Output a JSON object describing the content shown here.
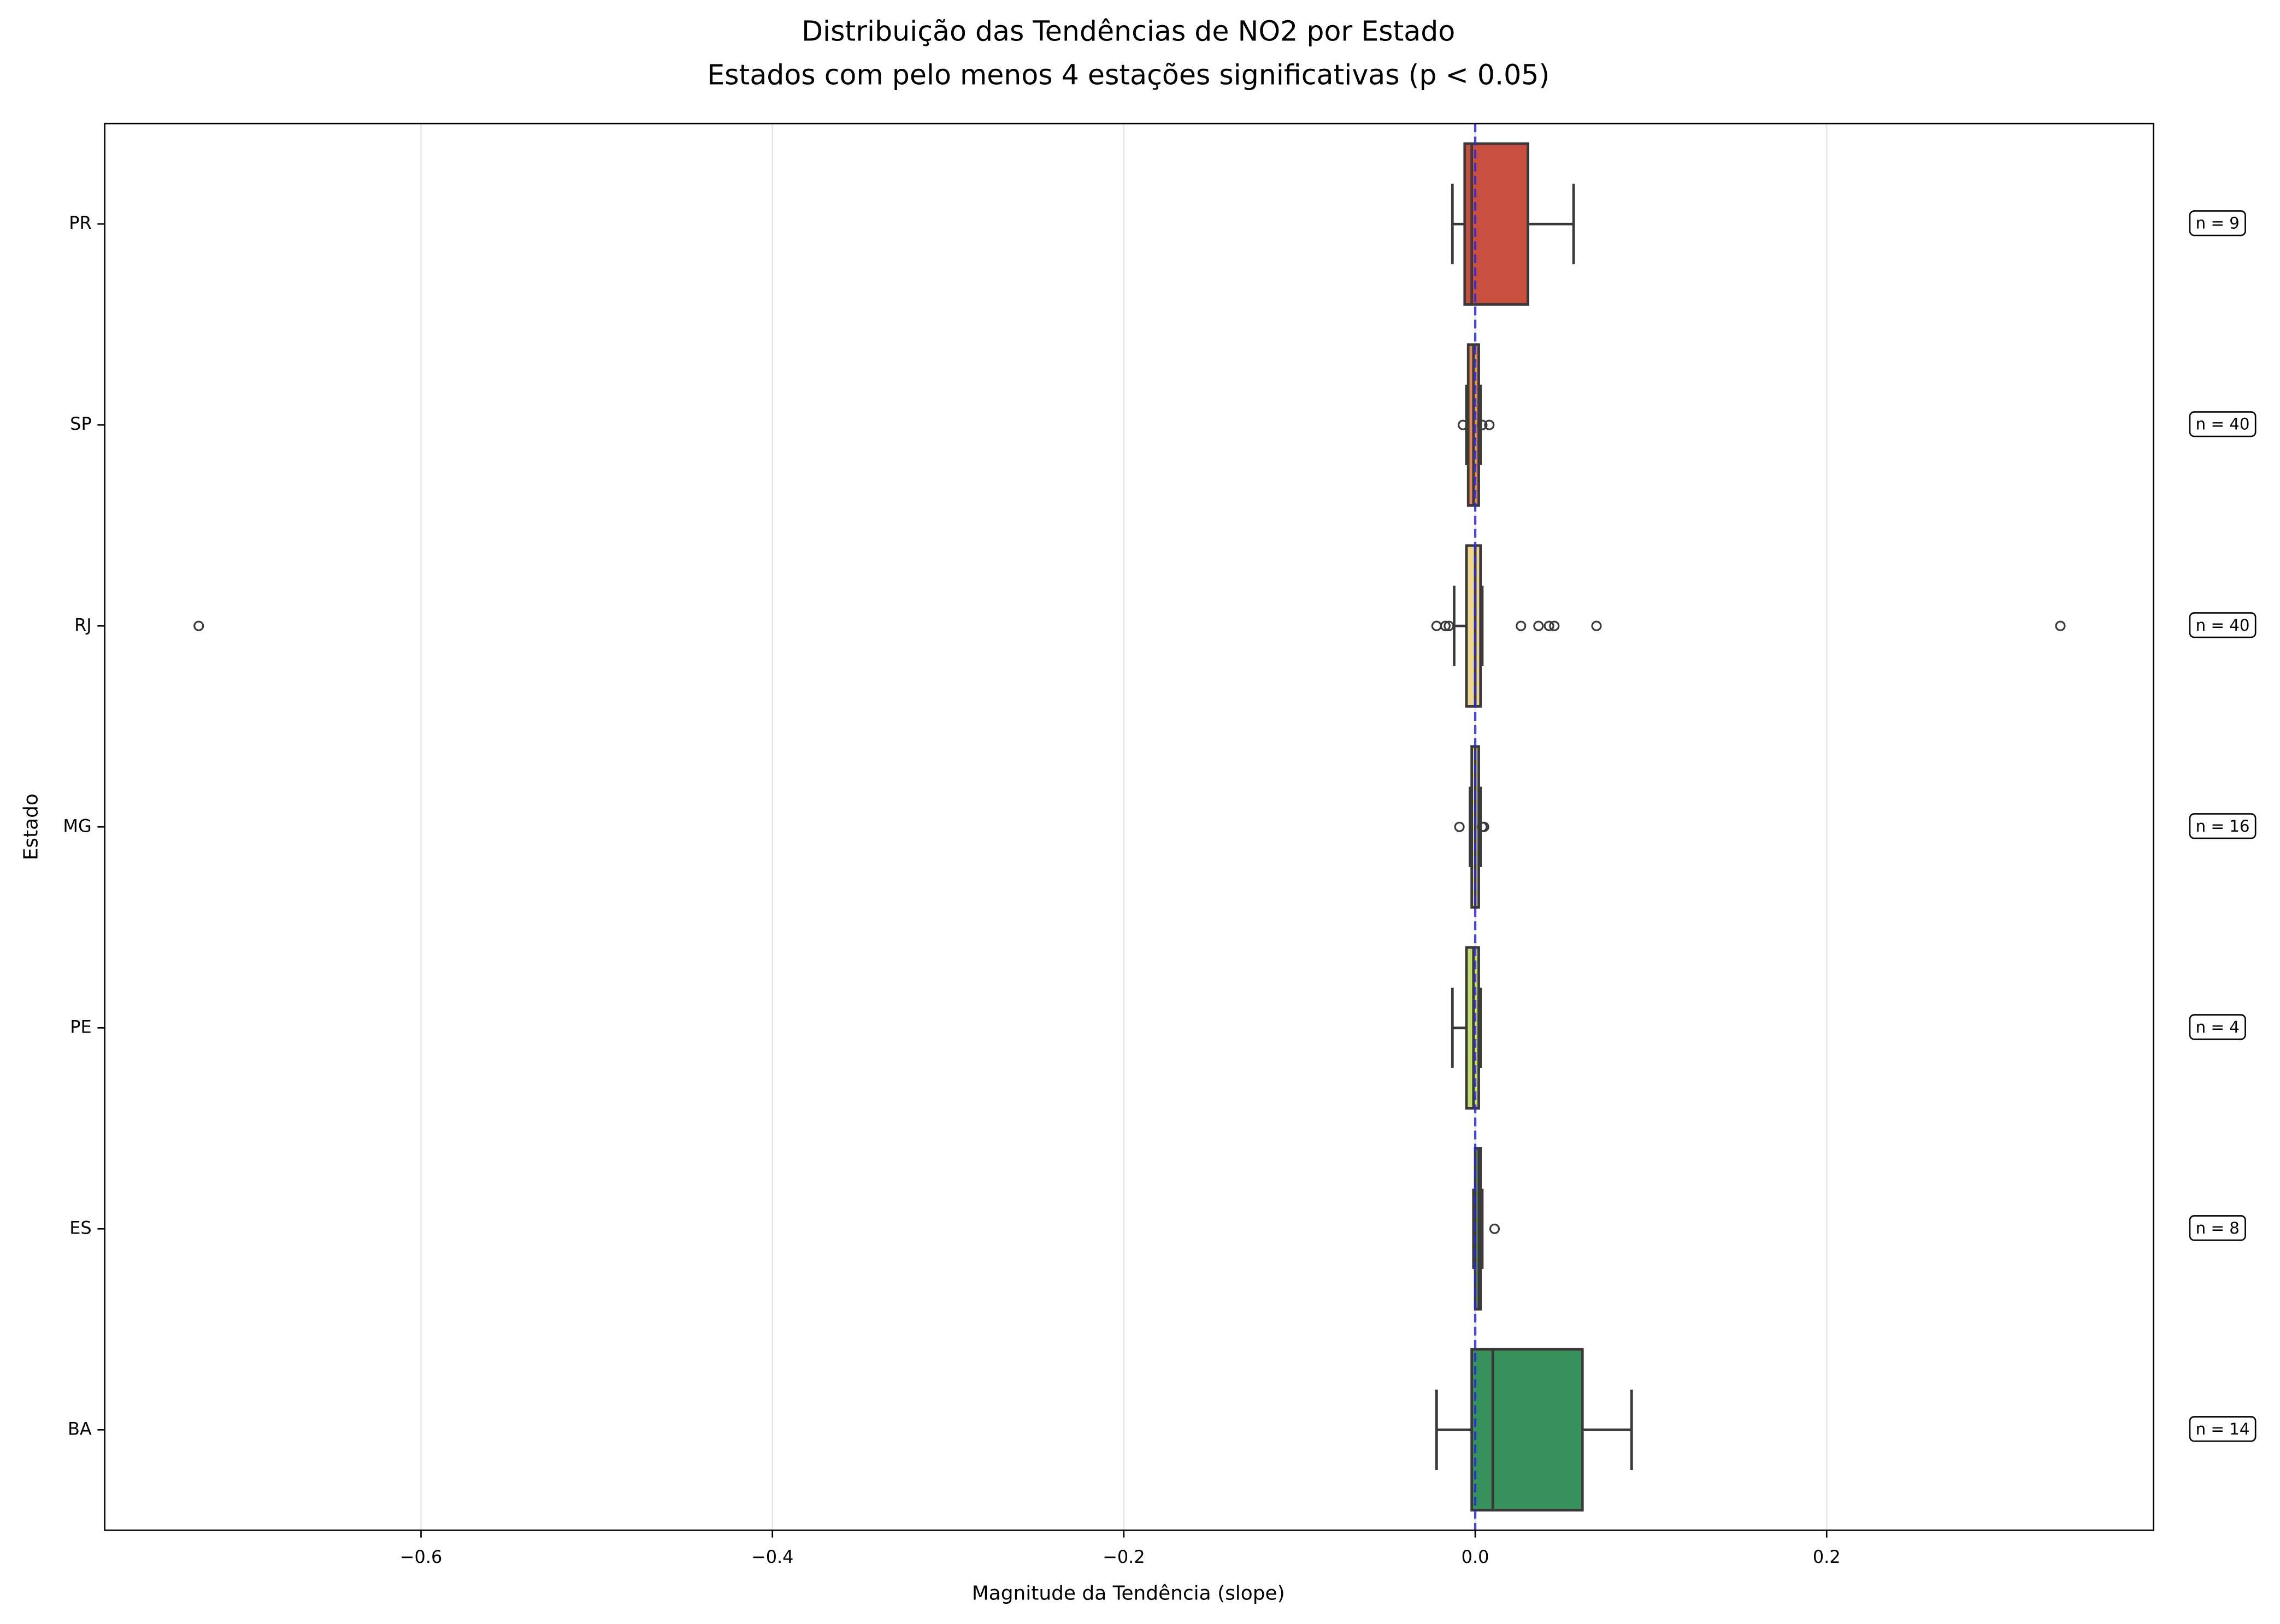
{
  "chart_data": {
    "type": "box",
    "title": "Distribuição das Tendências de NO2 por Estado",
    "subtitle": "Estados com pelo menos 4 estações significativas (p < 0.05)",
    "xlabel": "Magnitude da Tendência (slope)",
    "ylabel": "Estado",
    "orientation": "horizontal",
    "categories": [
      "PR",
      "SP",
      "RJ",
      "MG",
      "PE",
      "ES",
      "BA"
    ],
    "colors": [
      "#c9503f",
      "#e48a5a",
      "#efd68e",
      "#f6f0b4",
      "#c6df73",
      "#7cc06e",
      "#37915a"
    ],
    "boxes": [
      {
        "whislo": -0.013,
        "q1": -0.006,
        "med": -0.002,
        "q3": 0.03,
        "whishi": 0.056,
        "fliers": []
      },
      {
        "whislo": -0.005,
        "q1": -0.004,
        "med": -0.001,
        "q3": 0.002,
        "whishi": 0.003,
        "fliers": [
          -0.007,
          0.004,
          0.008
        ]
      },
      {
        "whislo": -0.012,
        "q1": -0.005,
        "med": 0.0,
        "q3": 0.003,
        "whishi": 0.004,
        "fliers": [
          -0.7265,
          -0.022,
          -0.017,
          -0.015,
          0.026,
          0.036,
          0.042,
          0.045,
          0.069,
          0.333
        ]
      },
      {
        "whislo": -0.003,
        "q1": -0.002,
        "med": 0.0,
        "q3": 0.002,
        "whishi": 0.003,
        "fliers": [
          -0.009,
          0.004,
          0.005
        ]
      },
      {
        "whislo": -0.013,
        "q1": -0.005,
        "med": -0.001,
        "q3": 0.002,
        "whishi": 0.003,
        "fliers": []
      },
      {
        "whislo": -0.001,
        "q1": 0.0,
        "med": 0.002,
        "q3": 0.003,
        "whishi": 0.004,
        "fliers": [
          0.011
        ]
      },
      {
        "whislo": -0.022,
        "q1": -0.002,
        "med": 0.01,
        "q3": 0.061,
        "whishi": 0.089,
        "fliers": []
      }
    ],
    "annotations": [
      "n = 9",
      "n = 40",
      "n = 40",
      "n = 16",
      "n = 4",
      "n = 8",
      "n = 14"
    ],
    "reference_line": {
      "value": 0,
      "color": "#2a2ad8"
    },
    "xlim": [
      -0.78,
      0.386
    ],
    "xticks": [
      {
        "value": -0.6,
        "label": "−0.6"
      },
      {
        "value": -0.4,
        "label": "−0.4"
      },
      {
        "value": -0.2,
        "label": "−0.2"
      },
      {
        "value": 0.0,
        "label": "0.0"
      },
      0.2
    ],
    "grid": true
  }
}
